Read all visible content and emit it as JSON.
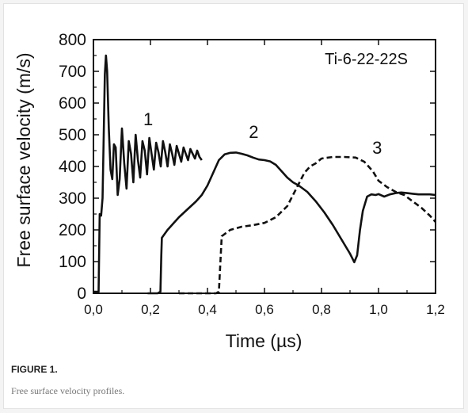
{
  "figure": {
    "label": "FIGURE 1.",
    "caption": "Free surface velocity profiles."
  },
  "chart_data": {
    "type": "line",
    "title": "Ti-6-22-22S",
    "xlabel": "Time (µs)",
    "ylabel": "Free surface velocity (m/s)",
    "xlim": [
      0.0,
      1.2
    ],
    "ylim": [
      0,
      800
    ],
    "xticks": [
      "0,0",
      "0,2",
      "0,4",
      "0,6",
      "0,8",
      "1,0",
      "1,2"
    ],
    "yticks": [
      "0",
      "100",
      "200",
      "300",
      "400",
      "500",
      "600",
      "700",
      "800"
    ],
    "grid": false,
    "series": [
      {
        "name": "1",
        "style": "solid",
        "x": [
          0.0,
          0.018,
          0.022,
          0.027,
          0.032,
          0.036,
          0.04,
          0.044,
          0.048,
          0.054,
          0.06,
          0.066,
          0.072,
          0.078,
          0.085,
          0.092,
          0.1,
          0.108,
          0.116,
          0.124,
          0.132,
          0.14,
          0.148,
          0.156,
          0.164,
          0.172,
          0.18,
          0.188,
          0.196,
          0.204,
          0.212,
          0.22,
          0.228,
          0.236,
          0.244,
          0.252,
          0.26,
          0.268,
          0.276,
          0.284,
          0.292,
          0.3,
          0.308,
          0.316,
          0.324,
          0.332,
          0.34,
          0.348,
          0.356,
          0.364,
          0.372,
          0.38
        ],
        "y": [
          5,
          5,
          250,
          245,
          300,
          500,
          690,
          750,
          700,
          520,
          390,
          360,
          470,
          460,
          310,
          360,
          520,
          410,
          330,
          480,
          440,
          350,
          500,
          420,
          365,
          480,
          450,
          375,
          490,
          440,
          390,
          475,
          445,
          400,
          480,
          445,
          400,
          470,
          440,
          405,
          465,
          440,
          415,
          460,
          440,
          420,
          455,
          440,
          425,
          450,
          430,
          420
        ]
      },
      {
        "name": "2",
        "style": "solid",
        "x": [
          0.19,
          0.225,
          0.235,
          0.238,
          0.24,
          0.26,
          0.28,
          0.3,
          0.33,
          0.36,
          0.38,
          0.4,
          0.42,
          0.44,
          0.46,
          0.48,
          0.5,
          0.52,
          0.54,
          0.56,
          0.58,
          0.6,
          0.62,
          0.64,
          0.66,
          0.68,
          0.7,
          0.72,
          0.75,
          0.78,
          0.81,
          0.84,
          0.87,
          0.9,
          0.915,
          0.925,
          0.935,
          0.945,
          0.96,
          0.975,
          0.99,
          1.0,
          1.02,
          1.04,
          1.06,
          1.08,
          1.1,
          1.12,
          1.14,
          1.16,
          1.18,
          1.2
        ],
        "y": [
          0,
          0,
          5,
          120,
          175,
          200,
          220,
          240,
          265,
          290,
          310,
          340,
          380,
          420,
          438,
          443,
          444,
          440,
          435,
          428,
          422,
          420,
          416,
          405,
          385,
          365,
          350,
          340,
          320,
          290,
          255,
          215,
          170,
          125,
          98,
          120,
          200,
          260,
          305,
          312,
          310,
          313,
          305,
          312,
          316,
          318,
          316,
          314,
          312,
          312,
          312,
          310
        ]
      },
      {
        "name": "3",
        "style": "dashed",
        "x": [
          0.3,
          0.43,
          0.44,
          0.45,
          0.48,
          0.52,
          0.56,
          0.6,
          0.64,
          0.68,
          0.7,
          0.72,
          0.74,
          0.76,
          0.78,
          0.8,
          0.84,
          0.88,
          0.92,
          0.95,
          0.98,
          1.0,
          1.03,
          1.06,
          1.09,
          1.12,
          1.15,
          1.18,
          1.2
        ],
        "y": [
          0,
          0,
          5,
          180,
          200,
          210,
          215,
          222,
          240,
          275,
          310,
          345,
          380,
          400,
          410,
          425,
          430,
          430,
          428,
          415,
          385,
          355,
          335,
          320,
          310,
          290,
          270,
          245,
          225
        ]
      }
    ]
  }
}
